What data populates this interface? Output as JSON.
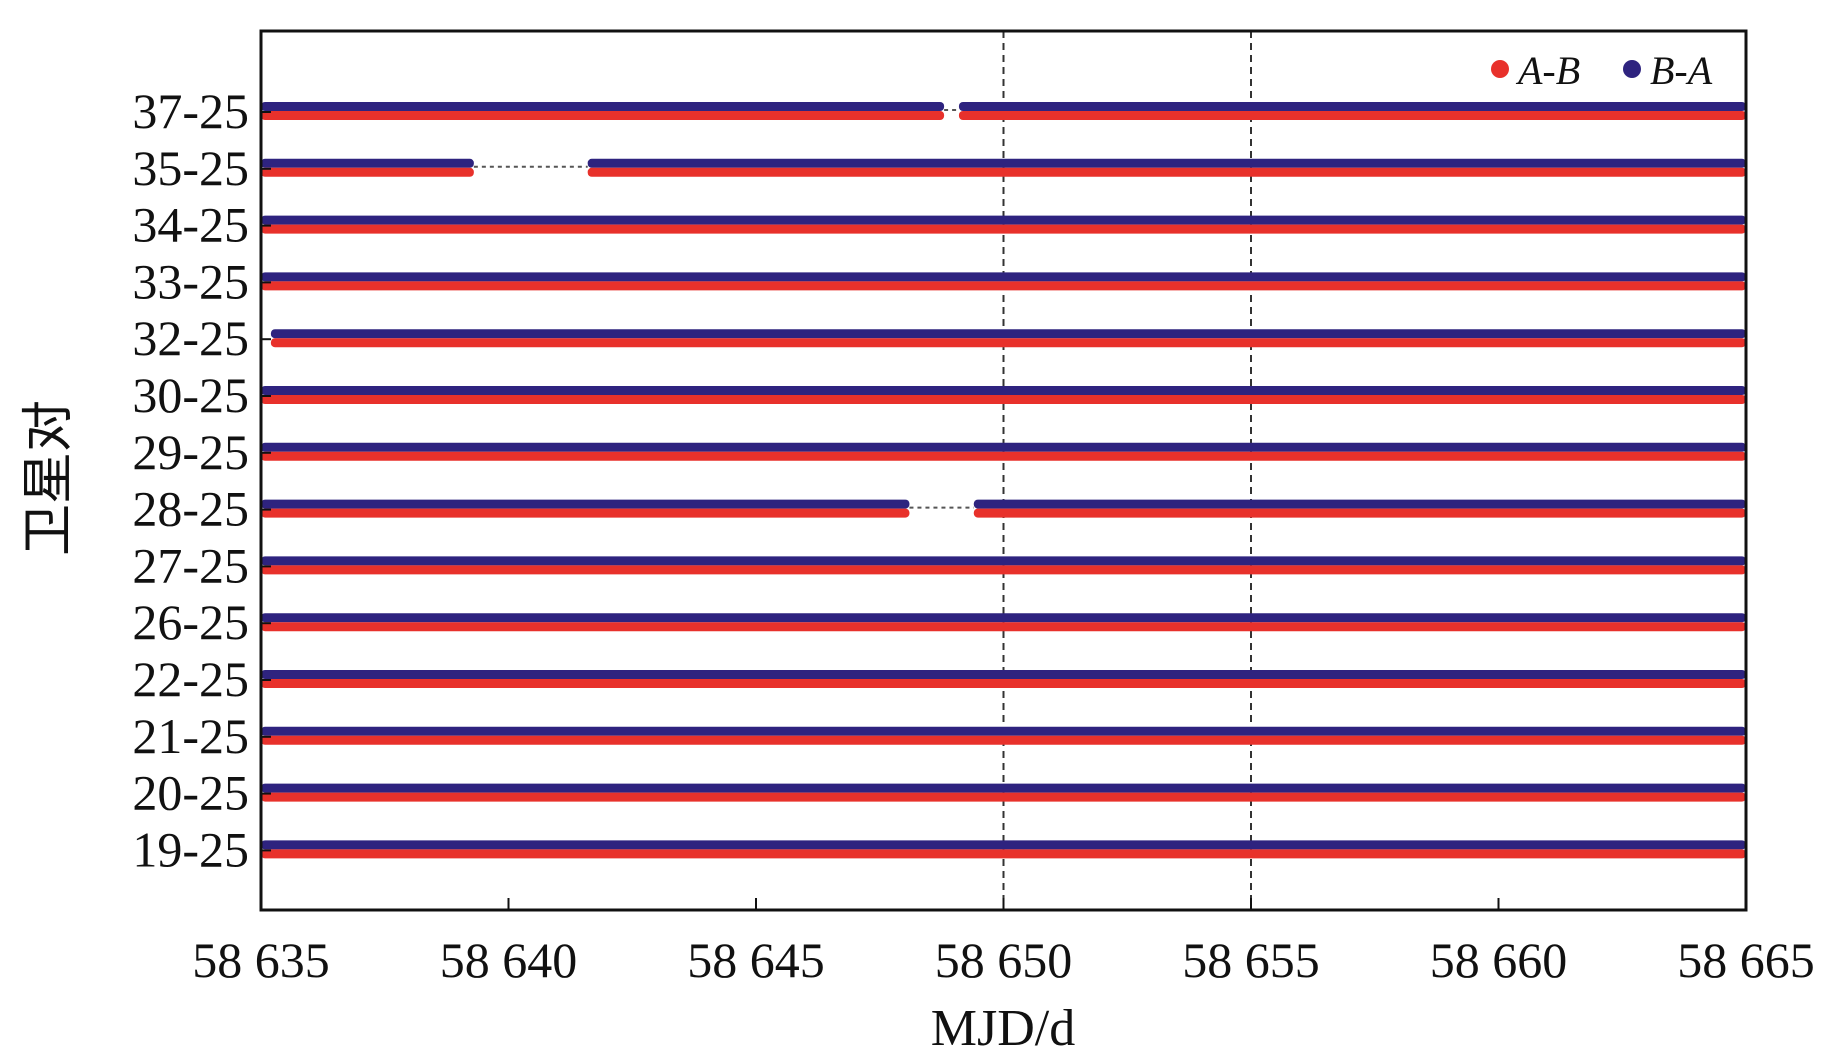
{
  "chart_data": {
    "type": "scatter",
    "xlabel": "MJD/d",
    "ylabel": "卫星对",
    "xlim": [
      58635,
      58665
    ],
    "x_ticks": [
      58635,
      58640,
      58645,
      58650,
      58655,
      58660,
      58665
    ],
    "x_tick_labels": [
      "58 635",
      "58 640",
      "58 645",
      "58 650",
      "58 655",
      "58 660",
      "58 665"
    ],
    "reference_lines_x": [
      58650,
      58655
    ],
    "grid": false,
    "legend_position": "top-right",
    "series": [
      {
        "name": "A-B",
        "color": "#e8312b"
      },
      {
        "name": "B-A",
        "color": "#2e237f"
      }
    ],
    "categories": [
      "37-25",
      "35-25",
      "34-25",
      "33-25",
      "32-25",
      "30-25",
      "29-25",
      "28-25",
      "27-25",
      "26-25",
      "22-25",
      "21-25",
      "20-25",
      "19-25"
    ],
    "pairs": [
      {
        "label": "37-25",
        "coverage": [
          [
            58635,
            58648.8
          ],
          [
            58649.1,
            58665
          ]
        ]
      },
      {
        "label": "35-25",
        "coverage": [
          [
            58635,
            58639.3
          ],
          [
            58641.6,
            58665
          ]
        ]
      },
      {
        "label": "34-25",
        "coverage": [
          [
            58635,
            58665
          ]
        ]
      },
      {
        "label": "33-25",
        "coverage": [
          [
            58635,
            58665
          ]
        ]
      },
      {
        "label": "32-25",
        "coverage": [
          [
            58635.2,
            58665
          ]
        ]
      },
      {
        "label": "30-25",
        "coverage": [
          [
            58635,
            58665
          ]
        ]
      },
      {
        "label": "29-25",
        "coverage": [
          [
            58635,
            58665
          ]
        ]
      },
      {
        "label": "28-25",
        "coverage": [
          [
            58635,
            58648.1
          ],
          [
            58649.4,
            58665
          ]
        ]
      },
      {
        "label": "27-25",
        "coverage": [
          [
            58635,
            58665
          ]
        ]
      },
      {
        "label": "26-25",
        "coverage": [
          [
            58635,
            58665
          ]
        ]
      },
      {
        "label": "22-25",
        "coverage": [
          [
            58635,
            58665
          ]
        ]
      },
      {
        "label": "21-25",
        "coverage": [
          [
            58635,
            58665
          ]
        ]
      },
      {
        "label": "20-25",
        "coverage": [
          [
            58635,
            58665
          ]
        ]
      },
      {
        "label": "19-25",
        "coverage": [
          [
            58635,
            58665
          ]
        ]
      }
    ]
  }
}
